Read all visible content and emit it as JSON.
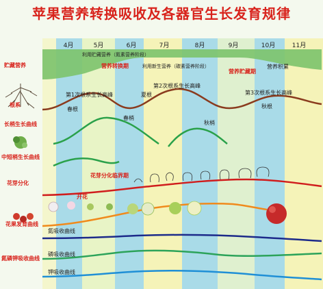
{
  "title": "苹果营养转换吸收及各器官生长发育规律",
  "months": [
    "4月",
    "5月",
    "6月",
    "7月",
    "8月",
    "9月",
    "10月",
    "11月"
  ],
  "row_labels": {
    "storage": "贮藏营养",
    "roots": "根系",
    "shoot_curve": "长梢生长曲线",
    "mid_short": "中短梢生长曲线",
    "flower_bud": "花芽分化",
    "fruit_curve": "花果发育曲线",
    "nutrient_curve": "氮磷钾吸收曲线"
  },
  "storage": {
    "use_stored": "利用贮藏营养（氮素营养阶段）",
    "transition": "营养转换期",
    "use_new": "利用新生营养（碳素营养阶段）",
    "accumulation": "营养积累",
    "storage_period": "营养贮藏期"
  },
  "roots": {
    "peak1": "第1次根系生长高峰",
    "peak2": "第2次根系生长高峰",
    "peak3": "第3次根系生长高峰",
    "spring": "春根",
    "summer": "夏根",
    "autumn": "秋根"
  },
  "shoots": {
    "spring": "春梢",
    "autumn": "秋梢"
  },
  "flower": {
    "critical": "花芽分化临界期",
    "bloom": "开花"
  },
  "nutrients": {
    "n": "氮吸收曲线",
    "p": "磷吸收曲线",
    "k": "钾吸收曲线"
  },
  "colors": {
    "title": "#d8231c",
    "label": "#d8231c",
    "band_blue": "#a9dbe8",
    "band_yellow": "#f5f3b8",
    "band_green": "#dff0cf",
    "storage_fill": "#7cc36b",
    "root_curve": "#8a3b1e",
    "shoot_curve": "#2aa14a",
    "flower_curve": "#d01d1d",
    "fruit_curve": "#f08a1c",
    "n_curve": "#1c2a8a",
    "p_curve": "#2ca35a",
    "k_curve": "#1f8fd6"
  }
}
